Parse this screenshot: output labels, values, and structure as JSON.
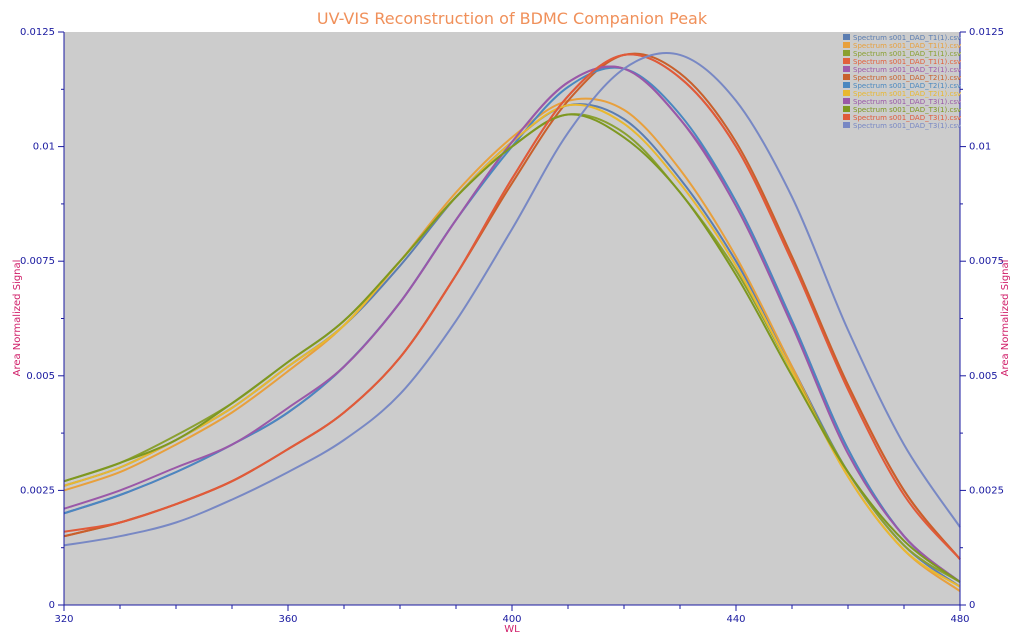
{
  "chart_data": {
    "type": "line",
    "title": "UV-VIS Reconstruction of BDMC Companion Peak",
    "xlabel": "WL",
    "ylabel": "Area Normalized Signal",
    "ylabel_right": "Area Normalized Signal",
    "xlim": [
      320,
      480
    ],
    "ylim": [
      0,
      0.0125
    ],
    "x_ticks": [
      "320",
      "360",
      "400",
      "440",
      "480"
    ],
    "y_ticks": [
      "0",
      "0.0025",
      "0.005",
      "0.0075",
      "0.01",
      "0.0125"
    ],
    "grid": false,
    "legend_position": "top-right",
    "plot_background": "#cccccc",
    "x": [
      320,
      330,
      340,
      350,
      360,
      370,
      380,
      390,
      400,
      410,
      420,
      430,
      440,
      450,
      460,
      470,
      480
    ],
    "series": [
      {
        "name": "Spectrum s001_DAD_T1(1).csv",
        "color": "#5b7db1",
        "values": [
          0.0026,
          0.003,
          0.0036,
          0.0043,
          0.0052,
          0.0061,
          0.0074,
          0.0089,
          0.0101,
          0.0109,
          0.0106,
          0.0093,
          0.0075,
          0.0052,
          0.0029,
          0.0013,
          0.0004
        ]
      },
      {
        "name": "Spectrum s001_DAD_T1(1).csv",
        "color": "#e8a03c",
        "values": [
          0.0025,
          0.0029,
          0.0035,
          0.0042,
          0.0051,
          0.0061,
          0.0075,
          0.009,
          0.0102,
          0.011,
          0.0108,
          0.0095,
          0.0076,
          0.0052,
          0.0028,
          0.0012,
          0.0003
        ]
      },
      {
        "name": "Spectrum s001_DAD_T1(1).csv",
        "color": "#8aa030",
        "values": [
          0.0027,
          0.0031,
          0.0037,
          0.0044,
          0.0053,
          0.0062,
          0.0075,
          0.0089,
          0.01,
          0.0107,
          0.0103,
          0.009,
          0.0073,
          0.0051,
          0.0029,
          0.0013,
          0.0005
        ]
      },
      {
        "name": "Spectrum s001_DAD_T1(1).csv",
        "color": "#e2603c",
        "values": [
          0.0015,
          0.0018,
          0.0022,
          0.0027,
          0.0034,
          0.0042,
          0.0054,
          0.0072,
          0.0093,
          0.0111,
          0.012,
          0.0115,
          0.01,
          0.0075,
          0.0048,
          0.0025,
          0.001
        ]
      },
      {
        "name": "Spectrum s001_DAD_T2(1).csv",
        "color": "#9f5aab",
        "values": [
          0.002,
          0.0024,
          0.0029,
          0.0035,
          0.0042,
          0.0052,
          0.0066,
          0.0084,
          0.0101,
          0.0114,
          0.0117,
          0.0106,
          0.0088,
          0.0062,
          0.0034,
          0.0015,
          0.0005
        ]
      },
      {
        "name": "Spectrum s001_DAD_T2(1).csv",
        "color": "#c8602c",
        "values": [
          0.0015,
          0.0018,
          0.0022,
          0.0027,
          0.0034,
          0.0042,
          0.0054,
          0.0072,
          0.0092,
          0.011,
          0.012,
          0.0116,
          0.0101,
          0.0076,
          0.0048,
          0.0025,
          0.001
        ]
      },
      {
        "name": "Spectrum s001_DAD_T2(1).csv",
        "color": "#4a88c0",
        "values": [
          0.002,
          0.0024,
          0.0029,
          0.0035,
          0.0042,
          0.0052,
          0.0066,
          0.0084,
          0.01,
          0.0113,
          0.0117,
          0.0107,
          0.0088,
          0.0062,
          0.0034,
          0.0015,
          0.0005
        ]
      },
      {
        "name": "Spectrum s001_DAD_T2(1).csv",
        "color": "#e8b830",
        "values": [
          0.0026,
          0.003,
          0.0036,
          0.0043,
          0.0052,
          0.0061,
          0.0075,
          0.0089,
          0.0101,
          0.0109,
          0.0105,
          0.0092,
          0.0074,
          0.0051,
          0.0028,
          0.0012,
          0.0004
        ]
      },
      {
        "name": "Spectrum s001_DAD_T3(1).csv",
        "color": "#9a58a8",
        "values": [
          0.0021,
          0.0025,
          0.003,
          0.0035,
          0.0043,
          0.0052,
          0.0066,
          0.0084,
          0.0101,
          0.0114,
          0.0117,
          0.0106,
          0.0087,
          0.0061,
          0.0033,
          0.0015,
          0.0005
        ]
      },
      {
        "name": "Spectrum s001_DAD_T3(1).csv",
        "color": "#7e9820",
        "values": [
          0.0027,
          0.0031,
          0.0036,
          0.0044,
          0.0053,
          0.0062,
          0.0075,
          0.0089,
          0.01,
          0.0107,
          0.0102,
          0.009,
          0.0072,
          0.005,
          0.0029,
          0.0014,
          0.0005
        ]
      },
      {
        "name": "Spectrum s001_DAD_T3(1).csv",
        "color": "#e05a3a",
        "values": [
          0.0016,
          0.0018,
          0.0022,
          0.0027,
          0.0034,
          0.0042,
          0.0054,
          0.0072,
          0.0093,
          0.0111,
          0.012,
          0.0115,
          0.01,
          0.0075,
          0.0047,
          0.0024,
          0.001
        ]
      },
      {
        "name": "Spectrum s001_DAD_T3(1).csv",
        "color": "#7888c4",
        "values": [
          0.0013,
          0.0015,
          0.0018,
          0.0023,
          0.0029,
          0.0036,
          0.0046,
          0.0062,
          0.0082,
          0.0103,
          0.0117,
          0.012,
          0.011,
          0.0089,
          0.006,
          0.0035,
          0.0017
        ]
      }
    ]
  }
}
